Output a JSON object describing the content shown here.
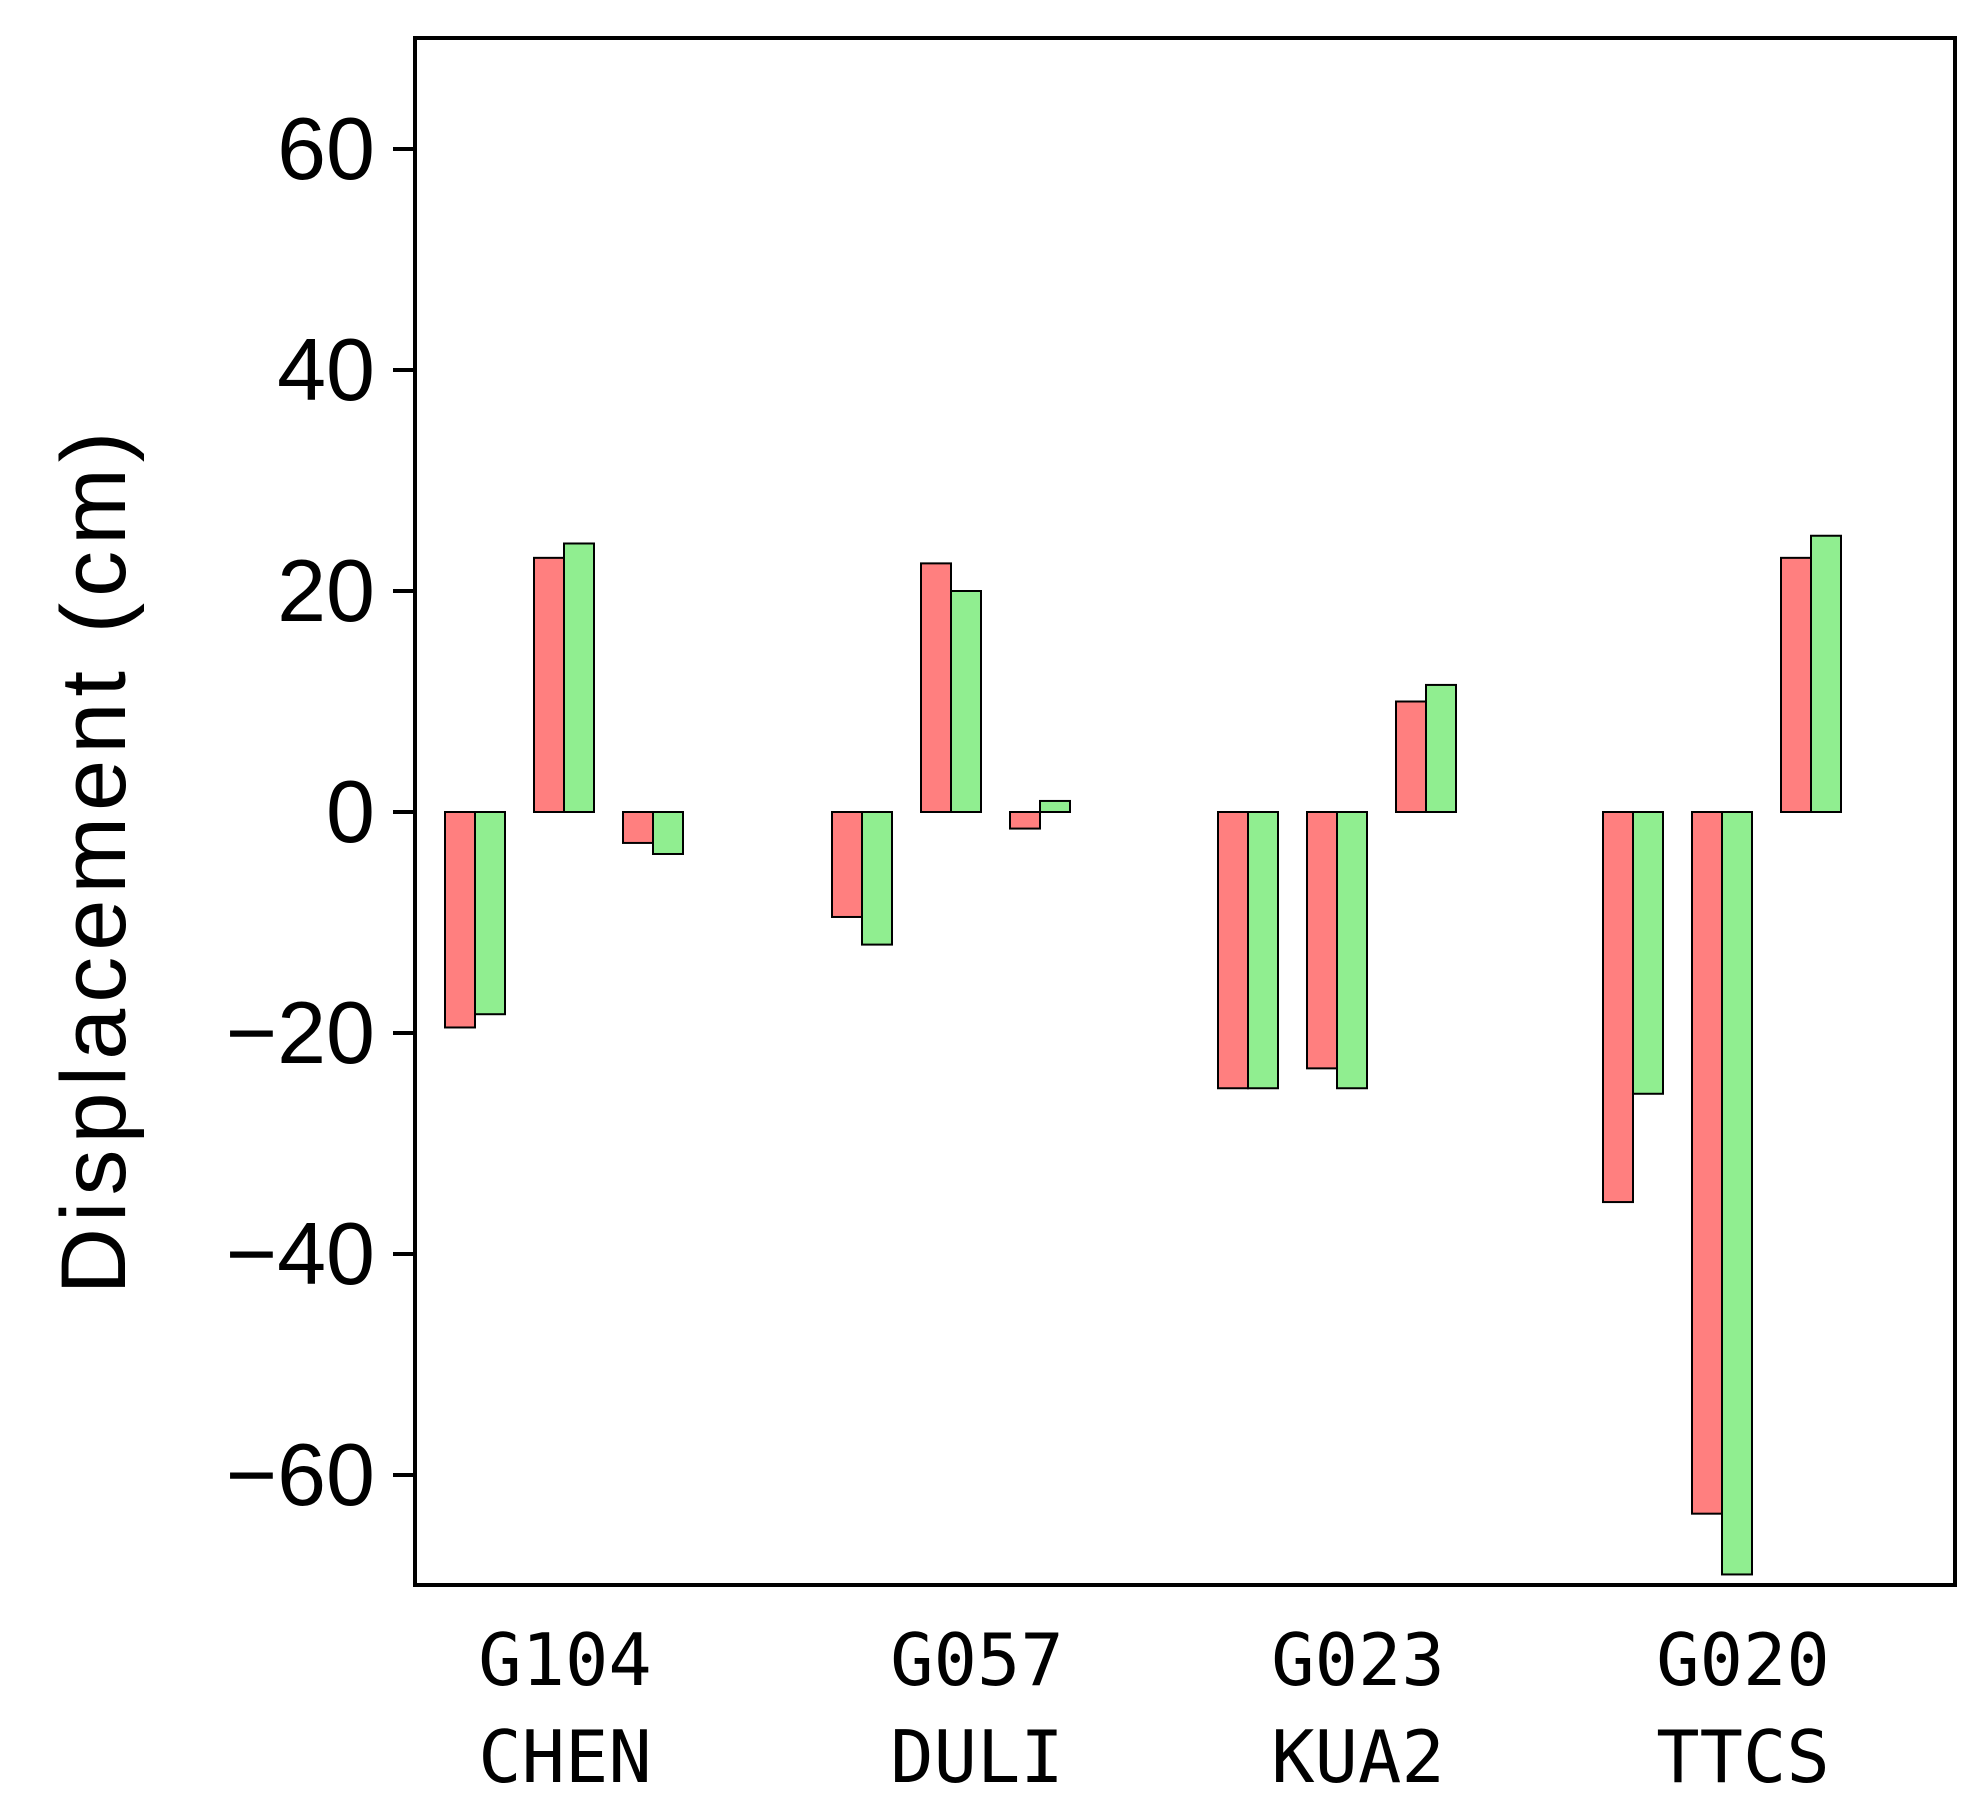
{
  "chart_data": {
    "type": "bar",
    "ylabel": "Displacement (cm)",
    "xlabel": "",
    "ylim": [
      -70,
      70
    ],
    "yticks": [
      60,
      40,
      20,
      0,
      -20,
      -40,
      -60
    ],
    "ytick_labels": [
      "60",
      "40",
      "20",
      "0",
      "−20",
      "−40",
      "−60"
    ],
    "grid": false,
    "categories": [
      {
        "line1": "G104",
        "line2": "CHEN"
      },
      {
        "line1": "G057",
        "line2": "DULI"
      },
      {
        "line1": "G023",
        "line2": "KUA2"
      },
      {
        "line1": "G020",
        "line2": "TTCS"
      }
    ],
    "series": [
      {
        "color": "#ff7f7f",
        "values": [
          [
            -19.5,
            23.0,
            -2.8
          ],
          [
            -9.5,
            22.5,
            -1.5
          ],
          [
            -25.0,
            -23.2,
            10.0
          ],
          [
            -35.3,
            -63.5,
            23.0
          ]
        ]
      },
      {
        "color": "#90ee90",
        "values": [
          [
            -18.3,
            24.3,
            -3.8
          ],
          [
            -12.0,
            20.0,
            1.0
          ],
          [
            -25.0,
            -25.0,
            11.5
          ],
          [
            -25.5,
            -69.0,
            25.0
          ]
        ]
      }
    ]
  }
}
